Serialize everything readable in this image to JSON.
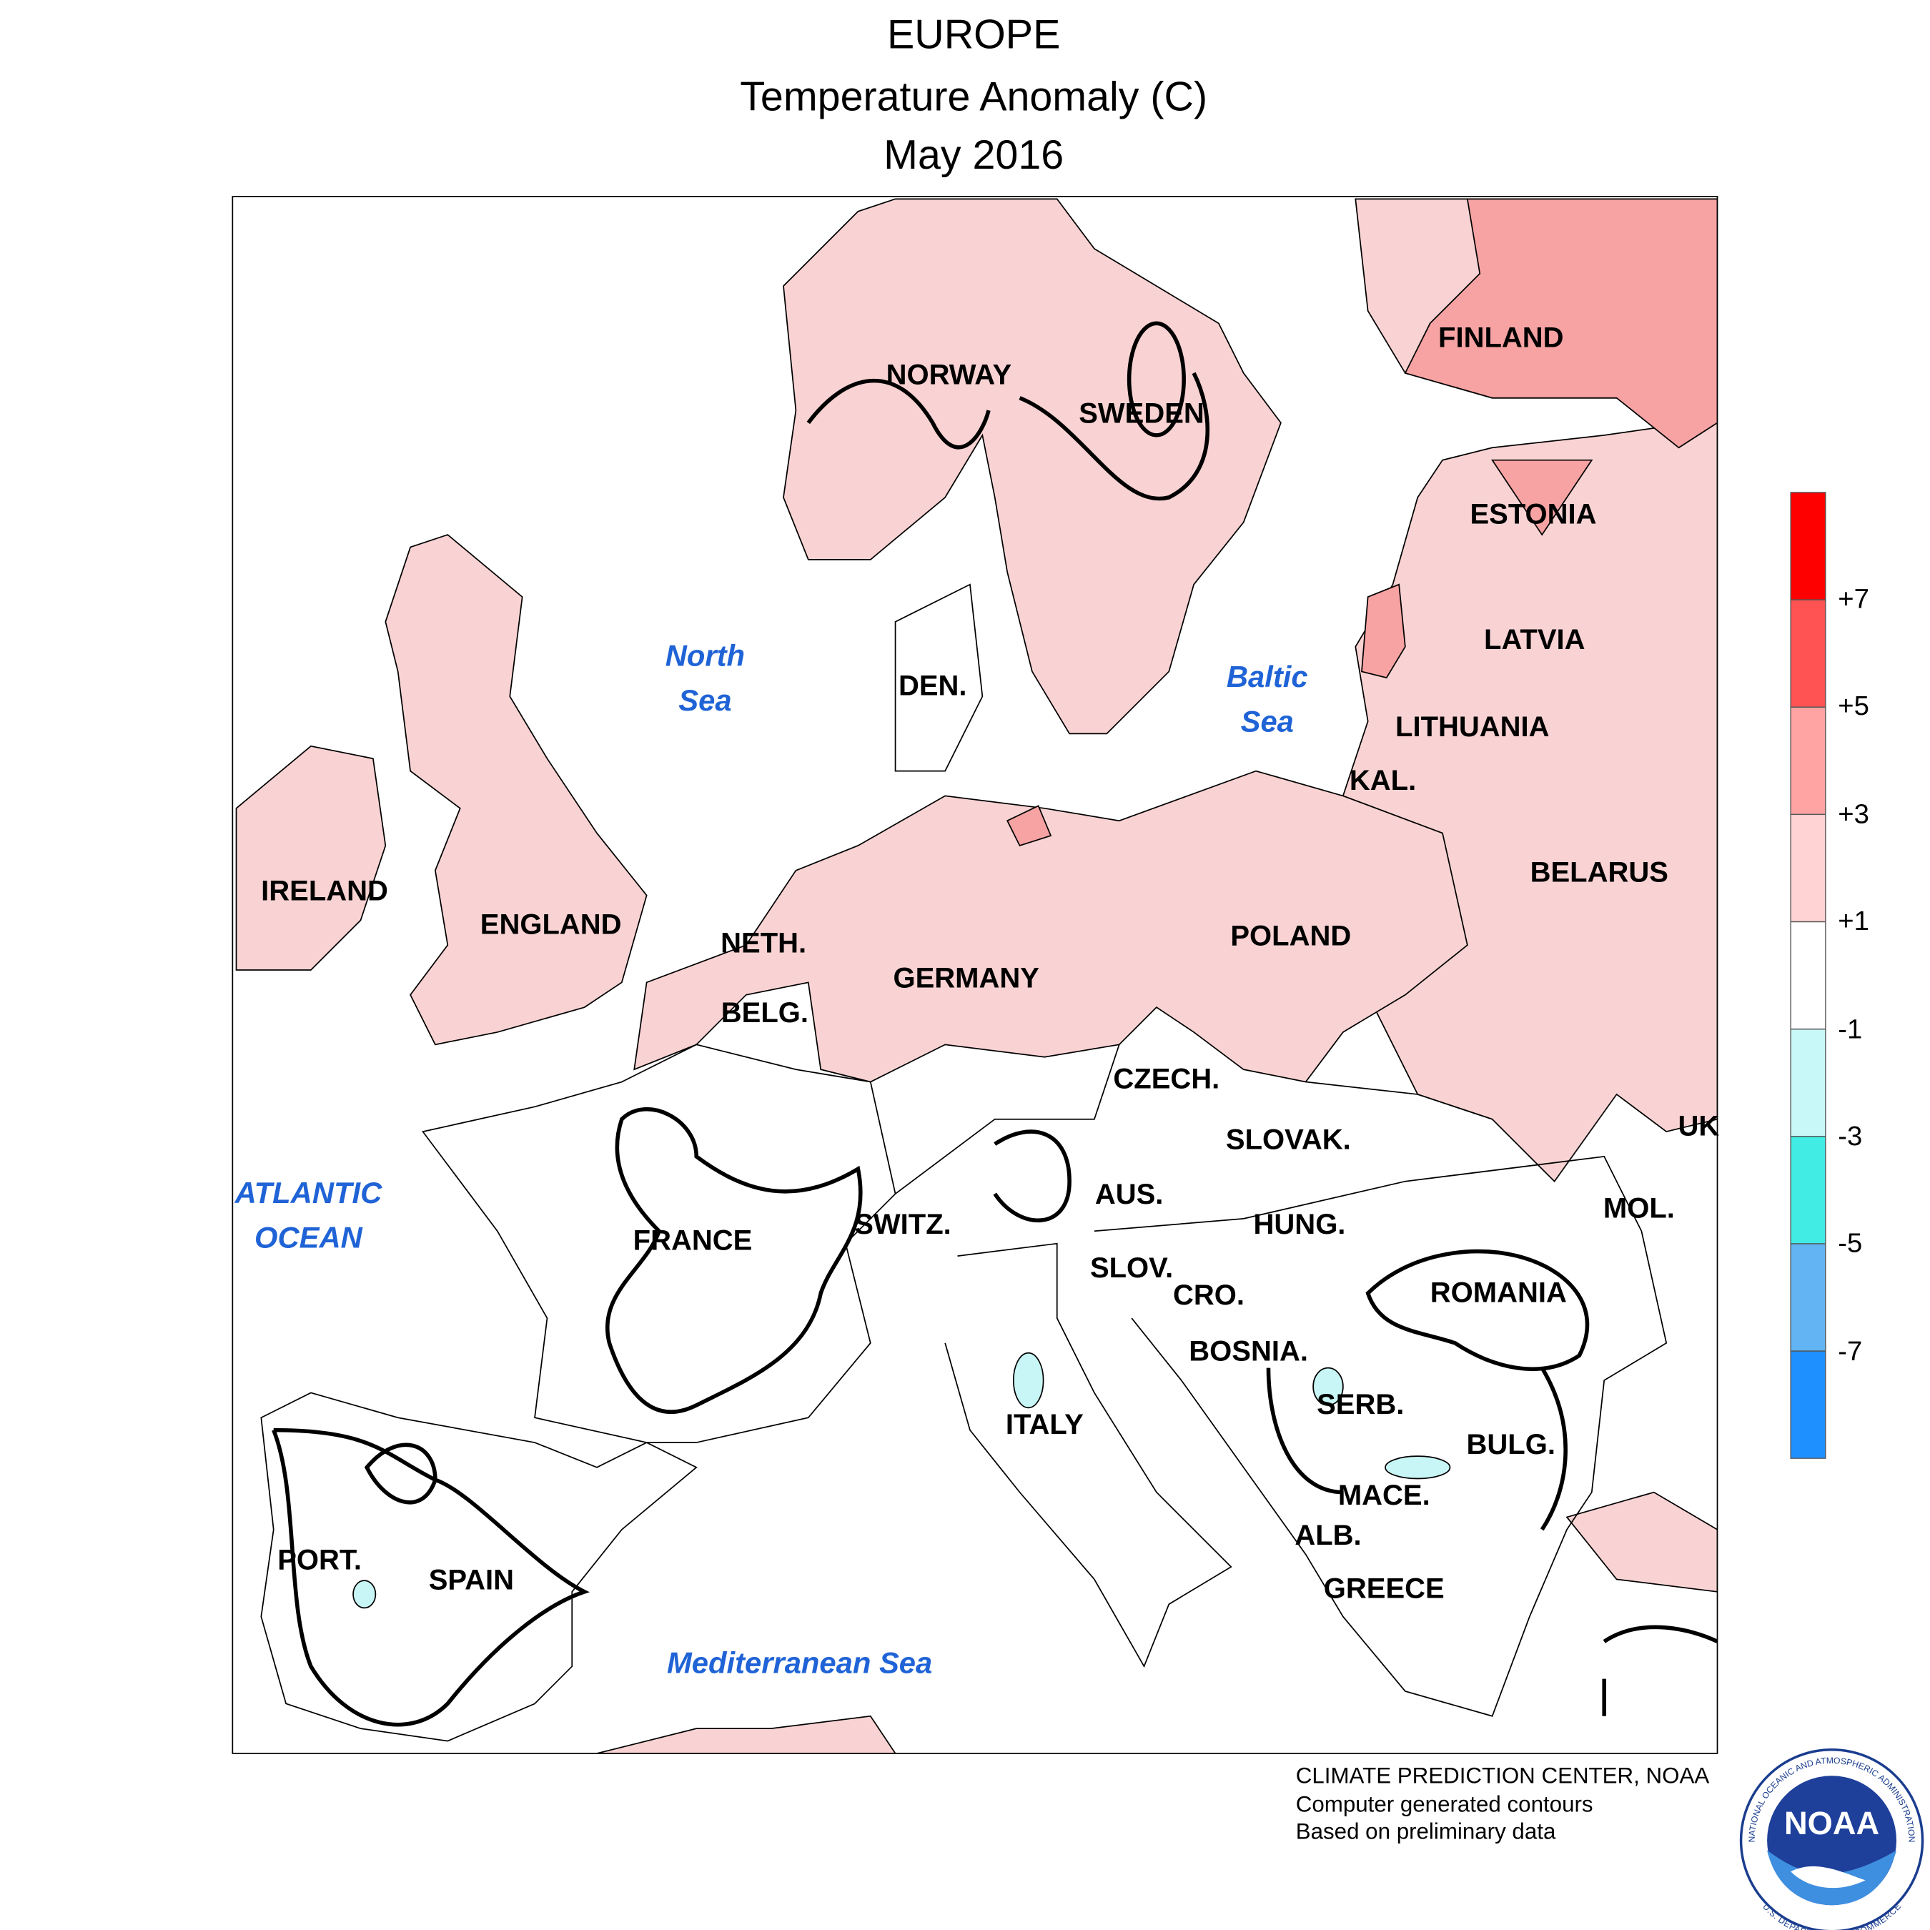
{
  "title": {
    "region": "EUROPE",
    "variable": "Temperature Anomaly (C)",
    "period": "May 2016"
  },
  "countries": [
    "NORWAY",
    "SWEDEN",
    "FINLAND",
    "ESTONIA",
    "LATVIA",
    "LITHUANIA",
    "KAL.",
    "BELARUS",
    "POLAND",
    "DEN.",
    "GERMANY",
    "NETH.",
    "BELG.",
    "IRELAND",
    "ENGLAND",
    "FRANCE",
    "SWITZ.",
    "AUS.",
    "CZECH.",
    "SLOVAK.",
    "HUNG.",
    "SLOV.",
    "CRO.",
    "BOSNIA.",
    "SERB.",
    "ROMANIA",
    "MOL.",
    "UK",
    "BULG.",
    "MACE.",
    "ALB.",
    "GREECE",
    "ITALY",
    "SPAIN",
    "PORT."
  ],
  "seas": [
    [
      "North",
      "Sea"
    ],
    [
      "Baltic",
      "Sea"
    ],
    [
      "ATLANTIC",
      "OCEAN"
    ],
    [
      "Mediterranean Sea"
    ]
  ],
  "legend": {
    "colors": [
      "#ff0000",
      "#ff5252",
      "#ffa3a3",
      "#ffd3d3",
      "#ffffff",
      "#c8f8f8",
      "#40ece4",
      "#62b4f2",
      "#1e90ff"
    ],
    "ticks": [
      "+7",
      "+5",
      "+3",
      "+1",
      "-1",
      "-3",
      "-5",
      "-7"
    ]
  },
  "credits": [
    "CLIMATE PREDICTION CENTER, NOAA",
    "Computer generated contours",
    "Based on preliminary data"
  ],
  "logo": {
    "text": "NOAA",
    "ring_top": "NATIONAL OCEANIC AND ATMOSPHERIC ADMINISTRATION",
    "ring_bottom": "U.S. DEPARTMENT OF COMMERCE"
  }
}
